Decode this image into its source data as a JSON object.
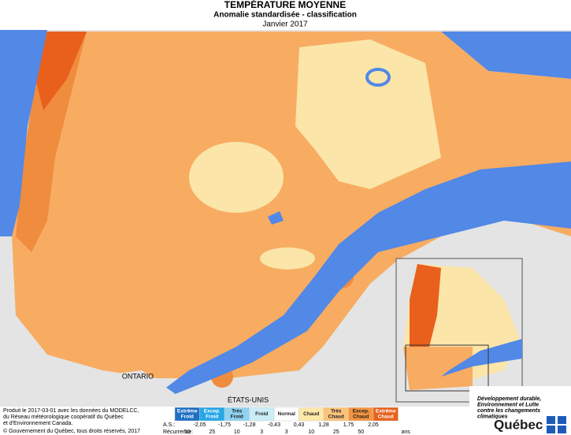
{
  "header": {
    "title": "TEMPÉRATURE MOYENNE",
    "subtitle": "Anomalie standardisée - classification",
    "date": "Janvier 2017"
  },
  "map": {
    "labels": [
      "ONTARIO",
      "ÉTATS-UNIS"
    ]
  },
  "legend": {
    "classes": [
      [
        "Extrême",
        "Froid"
      ],
      [
        "Excep.",
        "Froid"
      ],
      [
        "Très",
        "Froid"
      ],
      [
        "Froid"
      ],
      [
        "Normal"
      ],
      [
        "Chaud"
      ],
      [
        "Très",
        "Chaud"
      ],
      [
        "Excep.",
        "Chaud"
      ],
      [
        "Extrême",
        "Chaud"
      ]
    ],
    "as_label": "A.S.:",
    "as_values": [
      "-2,05",
      "-1,75",
      "-1,28",
      "-0,43",
      "0,43",
      "1,28",
      "1,75",
      "2,05"
    ],
    "recurrence_label": "Récurrence:",
    "recurrence_values": [
      "50",
      "25",
      "10",
      "3",
      "3",
      "10",
      "25",
      "50"
    ],
    "recurrence_unit": "ans"
  },
  "credits": {
    "lines": [
      "Produit le 2017-03-01 avec les données du MODELCC,",
      "du Réseau météorologique coopératif du Québec",
      "et d'Environnement Canada."
    ],
    "copyright": "© Gouvernement du Québec, tous droits réservés, 2017"
  },
  "logo": {
    "lines": [
      "Développement durable,",
      "Environnement et Lutte",
      "contre les changements",
      "climatiques"
    ],
    "name": "Québec"
  }
}
